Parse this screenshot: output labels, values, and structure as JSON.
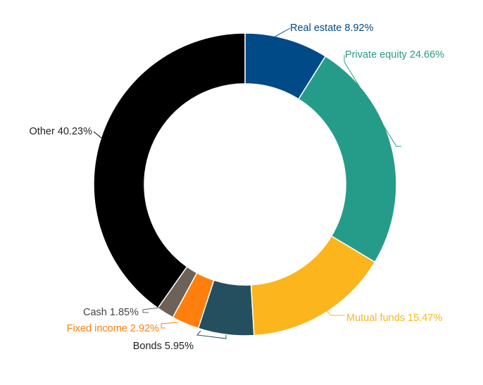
{
  "chart_data": {
    "type": "pie",
    "variant": "donut",
    "title": "",
    "slices": [
      {
        "label": "Real estate",
        "value": 8.92,
        "display": "Real estate 8.92%",
        "color": "#004a87",
        "label_color": "#004a87",
        "leader_color": "#004a87"
      },
      {
        "label": "Private equity",
        "value": 24.66,
        "display": "Private equity 24.66%",
        "color": "#259c8a",
        "label_color": "#259c8a",
        "leader_color": "#259c8a"
      },
      {
        "label": "Mutual funds",
        "value": 15.47,
        "display": "Mutual funds 15.47%",
        "color": "#fcb51d",
        "label_color": "#fcb51d",
        "leader_color": "#fcb51d"
      },
      {
        "label": "Bonds",
        "value": 5.95,
        "display": "Bonds 5.95%",
        "color": "#234f5e",
        "label_color": "#222222",
        "leader_color": "#234f5e"
      },
      {
        "label": "Fixed income",
        "value": 2.92,
        "display": "Fixed income 2.92%",
        "color": "#ff7f0e",
        "label_color": "#ff7f0e",
        "leader_color": "#ff7f0e"
      },
      {
        "label": "Cash",
        "value": 1.85,
        "display": "Cash 1.85%",
        "color": "#6e6158",
        "label_color": "#444444",
        "leader_color": "#6e6158"
      },
      {
        "label": "Other",
        "value": 40.23,
        "display": "Other 40.23%",
        "color": "#000000",
        "label_color": "#222222",
        "leader_color": "#000000"
      }
    ],
    "start": "12 o'clock",
    "direction": "clockwise",
    "slice_border_color": "#ffffff"
  }
}
